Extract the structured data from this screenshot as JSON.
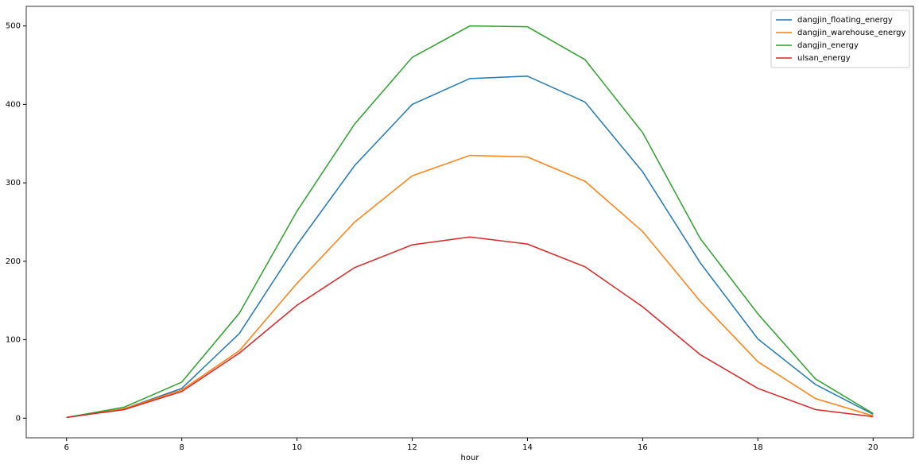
{
  "chart_data": {
    "type": "line",
    "xlabel": "hour",
    "x": [
      6,
      7,
      8,
      9,
      10,
      11,
      12,
      13,
      14,
      15,
      16,
      17,
      18,
      19,
      20
    ],
    "series": [
      {
        "name": "dangjin_floating_energy",
        "color": "#1f77b4",
        "values": [
          1,
          12,
          38,
          108,
          221,
          322,
          400,
          433,
          436,
          403,
          314,
          198,
          101,
          43,
          5
        ]
      },
      {
        "name": "dangjin_warehouse_energy",
        "color": "#ff7f0e",
        "values": [
          1,
          12,
          36,
          86,
          172,
          250,
          309,
          335,
          333,
          302,
          238,
          149,
          72,
          25,
          3
        ]
      },
      {
        "name": "dangjin_energy",
        "color": "#2ca02c",
        "values": [
          1,
          14,
          46,
          134,
          264,
          375,
          460,
          500,
          499,
          457,
          364,
          229,
          133,
          50,
          6
        ]
      },
      {
        "name": "ulsan_energy",
        "color": "#d62728",
        "values": [
          1,
          11,
          34,
          83,
          144,
          192,
          221,
          231,
          222,
          193,
          142,
          81,
          38,
          11,
          2
        ]
      }
    ],
    "xlim": [
      5.3,
      20.7
    ],
    "xticks": [
      6,
      8,
      10,
      12,
      14,
      16,
      18,
      20
    ],
    "ylim": [
      -25,
      525
    ],
    "yticks": [
      0,
      100,
      200,
      300,
      400,
      500
    ],
    "legend": "upper right"
  }
}
